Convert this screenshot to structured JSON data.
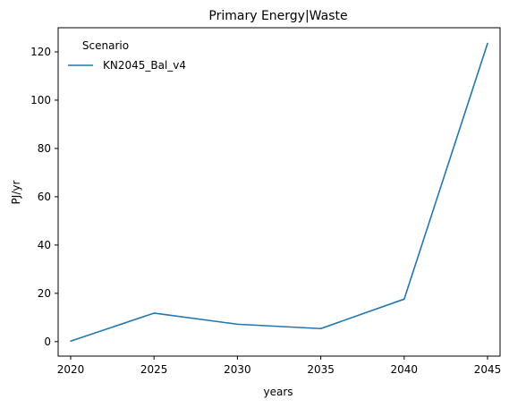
{
  "chart_data": {
    "type": "line",
    "title": "Primary Energy|Waste",
    "xlabel": "years",
    "ylabel": "PJ/yr",
    "x": [
      2020,
      2025,
      2030,
      2035,
      2040,
      2045
    ],
    "series": [
      {
        "name": "KN2045_Bal_v4",
        "color": "#1f77b4",
        "values": [
          0.2,
          11.8,
          7.2,
          5.4,
          17.6,
          123.5
        ]
      }
    ],
    "xlim": [
      2019.25,
      2045.75
    ],
    "ylim": [
      -6,
      130
    ],
    "xticks": [
      2020,
      2025,
      2030,
      2035,
      2040,
      2045
    ],
    "yticks": [
      0,
      20,
      40,
      60,
      80,
      100,
      120
    ],
    "legend": {
      "title": "Scenario",
      "placement": "upper-left"
    },
    "grid": false
  }
}
